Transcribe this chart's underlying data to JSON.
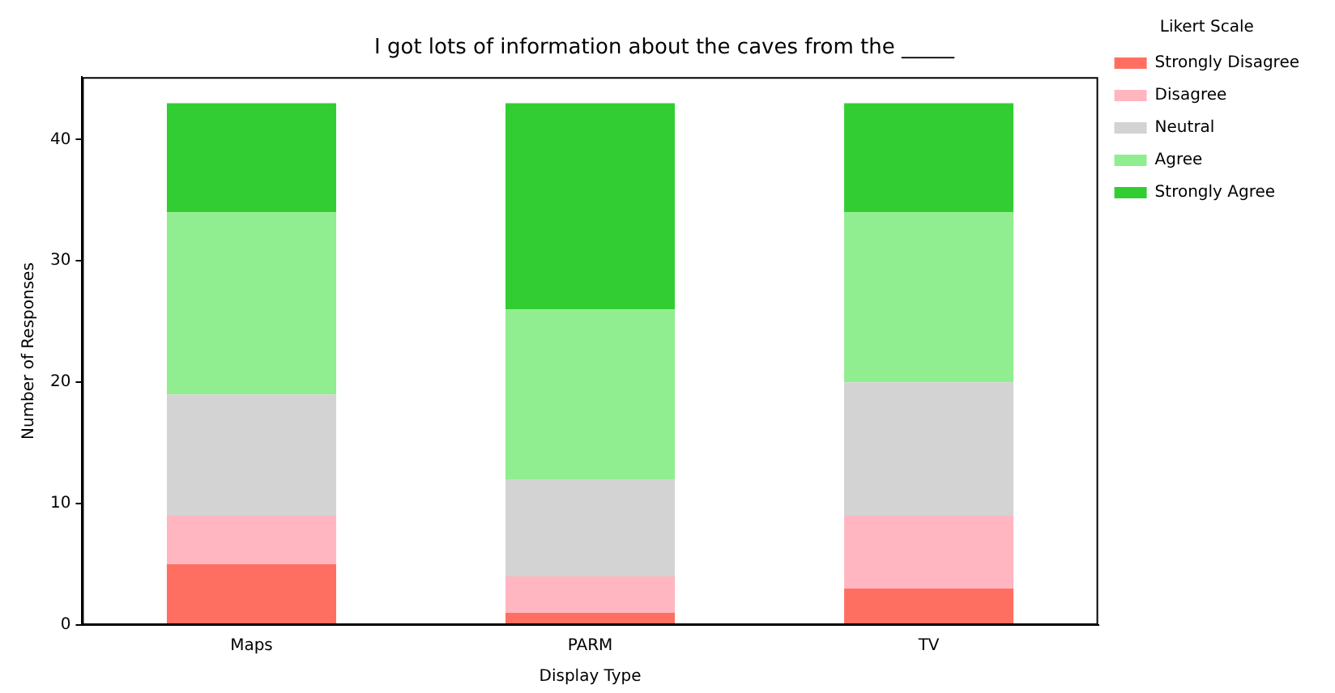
{
  "chart_data": {
    "type": "bar",
    "title": "I got lots of information about the caves from the _____",
    "xlabel": "Display Type",
    "ylabel": "Number of Responses",
    "legend_title": "Likert Scale",
    "categories": [
      "Maps",
      "PARM",
      "TV"
    ],
    "stacked": true,
    "ylim": [
      0,
      45.15
    ],
    "yticks": [
      0,
      10,
      20,
      30,
      40
    ],
    "grid": false,
    "legend": "top right",
    "series": [
      {
        "name": "Strongly Disagree",
        "color": "#ff6f61",
        "values": [
          5,
          1,
          3
        ]
      },
      {
        "name": "Disagree",
        "color": "#ffb6c1",
        "values": [
          4,
          3,
          6
        ]
      },
      {
        "name": "Neutral",
        "color": "#d3d3d3",
        "values": [
          10,
          8,
          11
        ]
      },
      {
        "name": "Agree",
        "color": "#90ee90",
        "values": [
          15,
          14,
          14
        ]
      },
      {
        "name": "Strongly Agree",
        "color": "#32cd32",
        "values": [
          9,
          17,
          9
        ]
      }
    ]
  }
}
